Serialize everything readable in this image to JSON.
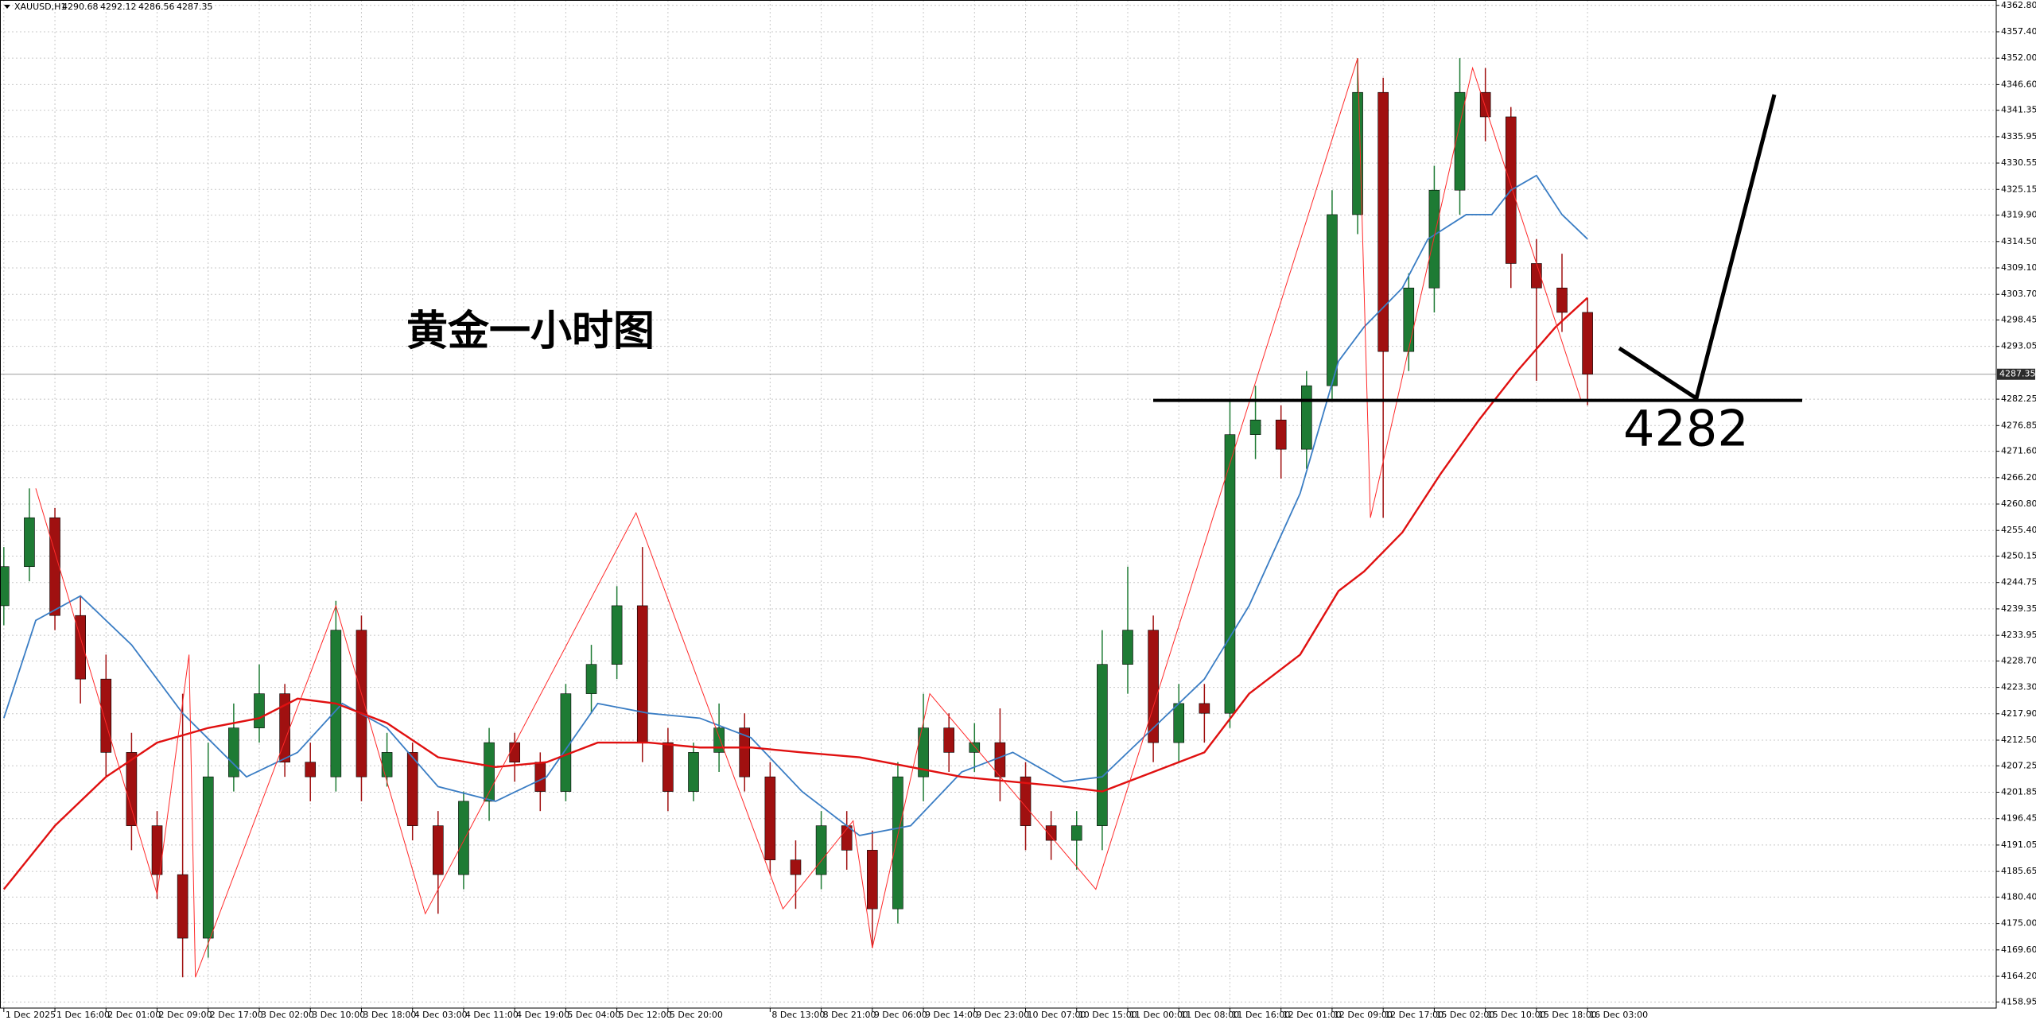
{
  "chart_data": {
    "type": "candlestick",
    "header": {
      "symbol": "XAUUSD,H1",
      "open": 4290.68,
      "high": 4292.12,
      "low": 4286.56,
      "close": 4287.35
    },
    "annotation": "黄金一小时图",
    "level": 4282,
    "last_price": 4287.35,
    "up_color": "#1e7b34",
    "down_color": "#a01010",
    "grid": true,
    "xlim": [
      -0.6,
      312
    ],
    "ylim": [
      4157.7,
      4363.9
    ],
    "yticks": [
      {
        "value": 4362.8,
        "label": "4362.80"
      },
      {
        "value": 4357.4,
        "label": "4357.40"
      },
      {
        "value": 4352,
        "label": "4352.00"
      },
      {
        "value": 4346.6,
        "label": "4346.60"
      },
      {
        "value": 4341.35,
        "label": "4341.35"
      },
      {
        "value": 4335.95,
        "label": "4335.95"
      },
      {
        "value": 4330.55,
        "label": "4330.55"
      },
      {
        "value": 4325.15,
        "label": "4325.15"
      },
      {
        "value": 4319.9,
        "label": "4319.90"
      },
      {
        "value": 4314.5,
        "label": "4314.50"
      },
      {
        "value": 4309.1,
        "label": "4309.10"
      },
      {
        "value": 4303.7,
        "label": "4303.70"
      },
      {
        "value": 4298.45,
        "label": "4298.45"
      },
      {
        "value": 4293.05,
        "label": "4293.05"
      },
      {
        "value": 4282.25,
        "label": "4282.25"
      },
      {
        "value": 4276.85,
        "label": "4276.85"
      },
      {
        "value": 4271.6,
        "label": "4271.60"
      },
      {
        "value": 4266.2,
        "label": "4266.20"
      },
      {
        "value": 4260.8,
        "label": "4260.80"
      },
      {
        "value": 4255.4,
        "label": "4255.40"
      },
      {
        "value": 4250.15,
        "label": "4250.15"
      },
      {
        "value": 4244.75,
        "label": "4244.75"
      },
      {
        "value": 4239.35,
        "label": "4239.35"
      },
      {
        "value": 4233.95,
        "label": "4233.95"
      },
      {
        "value": 4228.7,
        "label": "4228.70"
      },
      {
        "value": 4223.3,
        "label": "4223.30"
      },
      {
        "value": 4217.9,
        "label": "4217.90"
      },
      {
        "value": 4212.5,
        "label": "4212.50"
      },
      {
        "value": 4207.25,
        "label": "4207.25"
      },
      {
        "value": 4201.85,
        "label": "4201.85"
      },
      {
        "value": 4196.45,
        "label": "4196.45"
      },
      {
        "value": 4191.05,
        "label": "4191.05"
      },
      {
        "value": 4185.65,
        "label": "4185.65"
      },
      {
        "value": 4180.4,
        "label": "4180.40"
      },
      {
        "value": 4175,
        "label": "4175.00"
      },
      {
        "value": 4169.6,
        "label": "4169.60"
      },
      {
        "value": 4164.2,
        "label": "4164.20"
      },
      {
        "value": 4158.95,
        "label": "4158.95"
      }
    ],
    "xticks": [
      {
        "value": 0,
        "label": "1 Dec 2025"
      },
      {
        "value": 8,
        "label": "1 Dec 16:00"
      },
      {
        "value": 16,
        "label": "2 Dec 01:00"
      },
      {
        "value": 24,
        "label": "2 Dec 09:00"
      },
      {
        "value": 32,
        "label": "2 Dec 17:00"
      },
      {
        "value": 40,
        "label": "3 Dec 02:00"
      },
      {
        "value": 48,
        "label": "3 Dec 10:00"
      },
      {
        "value": 56,
        "label": "3 Dec 18:00"
      },
      {
        "value": 64,
        "label": "4 Dec 03:00"
      },
      {
        "value": 72,
        "label": "4 Dec 11:00"
      },
      {
        "value": 80,
        "label": "4 Dec 19:00"
      },
      {
        "value": 88,
        "label": "5 Dec 04:00"
      },
      {
        "value": 96,
        "label": "5 Dec 12:00"
      },
      {
        "value": 104,
        "label": "5 Dec 20:00"
      },
      {
        "value": 120,
        "label": "8 Dec 13:00"
      },
      {
        "value": 128,
        "label": "8 Dec 21:00"
      },
      {
        "value": 136,
        "label": "9 Dec 06:00"
      },
      {
        "value": 144,
        "label": "9 Dec 14:00"
      },
      {
        "value": 152,
        "label": "9 Dec 23:00"
      },
      {
        "value": 160,
        "label": "10 Dec 07:00"
      },
      {
        "value": 168,
        "label": "10 Dec 15:00"
      },
      {
        "value": 176,
        "label": "11 Dec 00:00"
      },
      {
        "value": 184,
        "label": "11 Dec 08:00"
      },
      {
        "value": 192,
        "label": "11 Dec 16:00"
      },
      {
        "value": 200,
        "label": "12 Dec 01:00"
      },
      {
        "value": 208,
        "label": "12 Dec 09:00"
      },
      {
        "value": 216,
        "label": "12 Dec 17:00"
      },
      {
        "value": 224,
        "label": "15 Dec 02:00"
      },
      {
        "value": 232,
        "label": "15 Dec 10:00"
      },
      {
        "value": 240,
        "label": "15 Dec 18:00"
      },
      {
        "value": 248,
        "label": "16 Dec 03:00"
      }
    ],
    "x": [
      0,
      4,
      8,
      12,
      16,
      20,
      24,
      28,
      32,
      36,
      40,
      44,
      48,
      52,
      56,
      60,
      64,
      68,
      72,
      76,
      80,
      84,
      88,
      92,
      96,
      100,
      104,
      108,
      112,
      116,
      120,
      124,
      128,
      132,
      136,
      140,
      144,
      148,
      152,
      156,
      160,
      164,
      168,
      172,
      176,
      180,
      184,
      188,
      192,
      196,
      200,
      204,
      208,
      212,
      216,
      220,
      224,
      228,
      232,
      236,
      240,
      244,
      248
    ],
    "open": [
      4240,
      4248,
      4258,
      4238,
      4225,
      4210,
      4195,
      4185,
      4172,
      4205,
      4215,
      4222,
      4208,
      4205,
      4235,
      4205,
      4210,
      4195,
      4185,
      4200,
      4212,
      4208,
      4202,
      4222,
      4228,
      4240,
      4212,
      4202,
      4210,
      4215,
      4205,
      4188,
      4185,
      4195,
      4190,
      4178,
      4205,
      4215,
      4210,
      4212,
      4205,
      4195,
      4192,
      4195,
      4228,
      4235,
      4212,
      4220,
      4218,
      4275,
      4278,
      4272,
      4285,
      4320,
      4345,
      4292,
      4305,
      4325,
      4345,
      4340,
      4310,
      4305,
      4300
    ],
    "high": [
      4252,
      4264,
      4260,
      4242,
      4230,
      4214,
      4198,
      4222,
      4212,
      4220,
      4228,
      4224,
      4212,
      4241,
      4238,
      4214,
      4212,
      4198,
      4202,
      4215,
      4214,
      4210,
      4224,
      4232,
      4244,
      4252,
      4215,
      4212,
      4220,
      4218,
      4208,
      4192,
      4198,
      4198,
      4194,
      4208,
      4222,
      4218,
      4216,
      4219,
      4208,
      4198,
      4198,
      4235,
      4248,
      4238,
      4224,
      4224,
      4282,
      4285,
      4281,
      4288,
      4325,
      4352,
      4348,
      4308,
      4330,
      4352,
      4350,
      4342,
      4315,
      4312,
      4303
    ],
    "low": [
      4236,
      4245,
      4235,
      4220,
      4205,
      4190,
      4180,
      4164,
      4168,
      4202,
      4212,
      4205,
      4200,
      4202,
      4200,
      4203,
      4192,
      4177,
      4182,
      4196,
      4204,
      4198,
      4200,
      4218,
      4225,
      4208,
      4198,
      4200,
      4206,
      4202,
      4185,
      4178,
      4182,
      4186,
      4170,
      4175,
      4200,
      4206,
      4206,
      4200,
      4190,
      4188,
      4186,
      4190,
      4222,
      4208,
      4208,
      4212,
      4215,
      4270,
      4266,
      4268,
      4282,
      4316,
      4258,
      4288,
      4300,
      4320,
      4335,
      4305,
      4286,
      4296,
      4281
    ],
    "close": [
      4248,
      4258,
      4238,
      4225,
      4210,
      4195,
      4185,
      4172,
      4205,
      4215,
      4222,
      4208,
      4205,
      4235,
      4205,
      4210,
      4195,
      4185,
      4200,
      4212,
      4208,
      4202,
      4222,
      4228,
      4240,
      4212,
      4202,
      4210,
      4215,
      4205,
      4188,
      4185,
      4195,
      4190,
      4178,
      4205,
      4215,
      4210,
      4212,
      4205,
      4195,
      4192,
      4195,
      4228,
      4235,
      4212,
      4220,
      4218,
      4275,
      4278,
      4272,
      4285,
      4320,
      4345,
      4292,
      4305,
      4325,
      4345,
      4340,
      4310,
      4305,
      4300,
      4287.35
    ],
    "lines": [
      {
        "color": "#3a7dc4",
        "width": 1.8,
        "x": [
          0,
          5,
          12,
          20,
          28,
          38,
          46,
          53,
          60,
          68,
          77,
          85,
          93,
          101,
          109,
          117,
          125,
          134,
          142,
          150,
          158,
          166,
          172,
          180,
          188,
          195,
          203,
          209,
          213,
          219,
          223,
          229,
          233,
          236,
          240,
          244,
          248
        ],
        "values": [
          4217,
          4237,
          4242,
          4232,
          4218,
          4205,
          4210,
          4220,
          4215,
          4203,
          4200,
          4205,
          4220,
          4218,
          4217,
          4213,
          4202,
          4193,
          4195,
          4206,
          4210,
          4204,
          4205,
          4215,
          4225,
          4240,
          4263,
          4290,
          4297,
          4305,
          4315,
          4320,
          4320,
          4325,
          4328,
          4320,
          4315
        ]
      },
      {
        "color": "#e01010",
        "width": 2.4,
        "x": [
          0,
          8,
          16,
          24,
          32,
          40,
          46,
          52,
          60,
          68,
          77,
          85,
          93,
          101,
          109,
          117,
          125,
          134,
          142,
          150,
          158,
          166,
          172,
          180,
          188,
          195,
          203,
          209,
          213,
          219,
          225,
          231,
          237,
          243,
          248
        ],
        "values": [
          4182,
          4195,
          4205,
          4212,
          4215,
          4217,
          4221,
          4220,
          4216,
          4209,
          4207,
          4208,
          4212,
          4212,
          4211,
          4211,
          4210,
          4209,
          4207,
          4205,
          4204,
          4203,
          4202,
          4206,
          4210,
          4222,
          4230,
          4243,
          4247,
          4255,
          4267,
          4278,
          4288,
          4297,
          4303
        ]
      },
      {
        "color": "#ff2a2a",
        "width": 1,
        "x": [
          5,
          24,
          29,
          30,
          52,
          66,
          99,
          122,
          133,
          136,
          145,
          171,
          212,
          214,
          230,
          247
        ],
        "values": [
          4264,
          4181,
          4230,
          4164,
          4240,
          4177,
          4259,
          4178,
          4196,
          4170,
          4222,
          4182,
          4352,
          4258,
          4350,
          4282
        ]
      }
    ]
  }
}
